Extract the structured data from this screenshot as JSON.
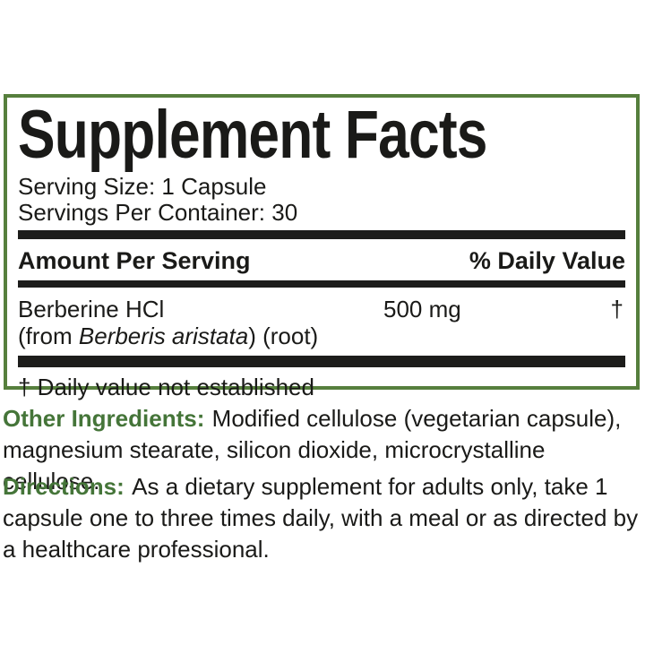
{
  "colors": {
    "border_green": "#567f3d",
    "accent_green": "#457539",
    "bar_black": "#1d1d1b",
    "text_black": "#1a1a18"
  },
  "panel": {
    "title": "Supplement Facts",
    "serving_size": "Serving Size: 1 Capsule",
    "servings_per_container": "Servings Per Container: 30",
    "columns": {
      "amount": "Amount Per Serving",
      "daily_value": "% Daily Value"
    },
    "ingredient": {
      "name": "Berberine HCl",
      "source_prefix": "(from ",
      "source_latin": "Berberis aristata",
      "source_suffix": ") (root)",
      "amount": "500 mg",
      "daily_value": "†"
    },
    "footnote": "† Daily value not established"
  },
  "other_ingredients": {
    "label": "Other Ingredients:",
    "text": "Modified cellulose (vegetarian capsule),\nmagnesium stearate, silicon dioxide, microcrystalline cellulose."
  },
  "directions": {
    "label": "Directions:",
    "text": "As a dietary supplement for adults only, take 1\ncapsule one to three times daily, with a meal or as directed by\na healthcare professional."
  }
}
